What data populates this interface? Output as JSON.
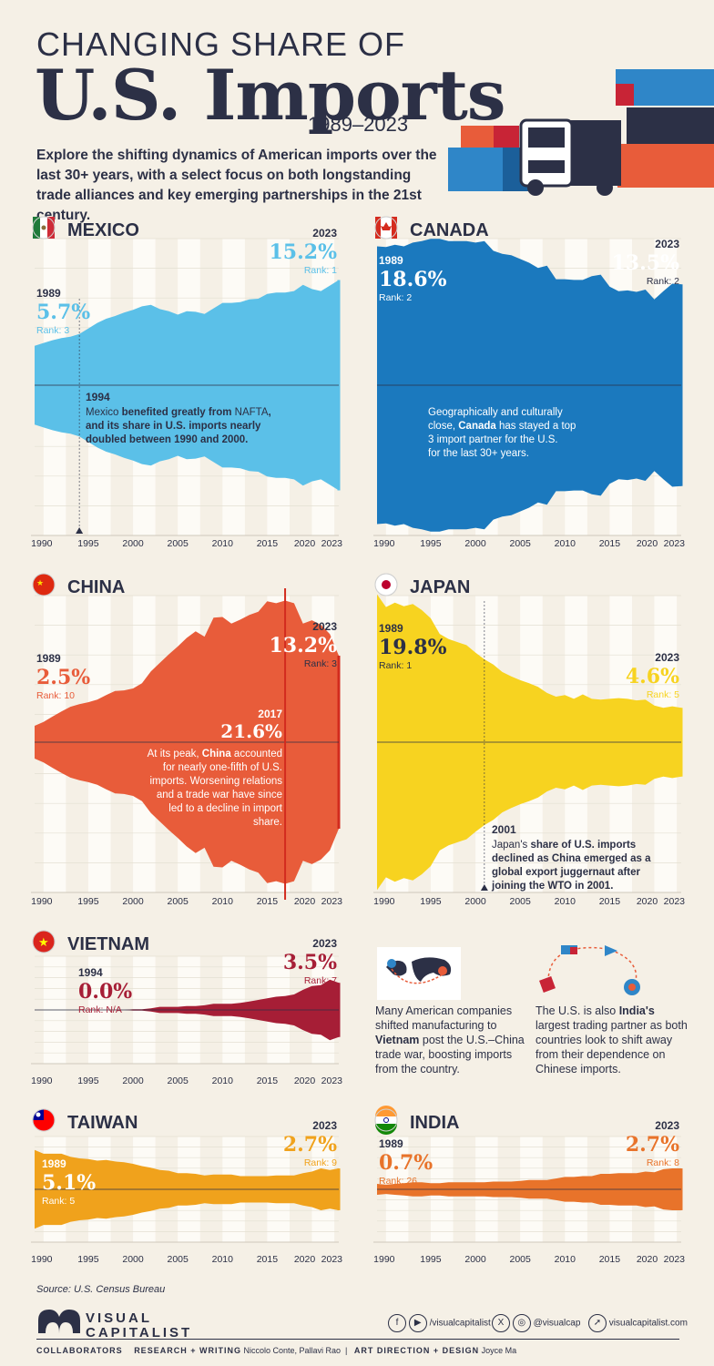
{
  "header": {
    "title_top": "CHANGING SHARE OF",
    "title_main": "U.S. Imports",
    "years": "1989–2023",
    "intro": "Explore the shifting dynamics of American imports over the last 30+ years, with a select focus on both longstanding trade alliances and key emerging partnerships in the 21st century."
  },
  "colors": {
    "background": "#f5f0e6",
    "text": "#2c3046",
    "mexico": "#5bc0e8",
    "canada": "#1b79be",
    "china": "#e85c3a",
    "china_line": "#d22b1e",
    "japan": "#f7d320",
    "vietnam": "#a61e36",
    "taiwan": "#f0a21c",
    "india": "#e8732a"
  },
  "axis": {
    "ticks": [
      "1990",
      "1995",
      "2000",
      "2005",
      "2010",
      "2015",
      "2020",
      "2023"
    ]
  },
  "chart_data": [
    {
      "type": "area",
      "country": "MEXICO",
      "x": [
        1989,
        1990,
        1991,
        1992,
        1993,
        1994,
        1995,
        1996,
        1997,
        1998,
        1999,
        2000,
        2001,
        2002,
        2003,
        2004,
        2005,
        2006,
        2007,
        2008,
        2009,
        2010,
        2011,
        2012,
        2013,
        2014,
        2015,
        2016,
        2017,
        2018,
        2019,
        2020,
        2021,
        2022,
        2023
      ],
      "values": [
        5.7,
        6.1,
        6.5,
        6.8,
        7.0,
        7.4,
        8.2,
        9.0,
        9.6,
        10.0,
        10.5,
        10.9,
        11.4,
        11.6,
        11.0,
        10.7,
        10.2,
        10.7,
        10.6,
        10.3,
        11.1,
        11.9,
        11.9,
        12.0,
        12.4,
        12.5,
        13.2,
        13.4,
        13.4,
        13.6,
        14.5,
        13.9,
        13.6,
        14.4,
        15.2
      ],
      "annotations": {
        "start": {
          "year_label": "1989",
          "value_label": "5.7%",
          "rank": "Rank: 3"
        },
        "end": {
          "year_label": "2023",
          "value_label": "15.2%",
          "rank": "Rank: 1"
        },
        "event": {
          "year_label": "1994",
          "text_parts": [
            "Mexico",
            " benefited greatly from ",
            "NAFTA",
            ", and its share in U.S. imports nearly doubled between 1990 and 2000."
          ]
        }
      }
    },
    {
      "type": "area",
      "country": "CANADA",
      "x": [
        1989,
        1990,
        1991,
        1992,
        1993,
        1994,
        1995,
        1996,
        1997,
        1998,
        1999,
        2000,
        2001,
        2002,
        2003,
        2004,
        2005,
        2006,
        2007,
        2008,
        2009,
        2010,
        2011,
        2012,
        2013,
        2014,
        2015,
        2016,
        2017,
        2018,
        2019,
        2020,
        2021,
        2022,
        2023
      ],
      "values": [
        18.6,
        18.5,
        18.8,
        18.6,
        19.1,
        19.3,
        19.6,
        19.6,
        19.3,
        19.3,
        19.3,
        19.1,
        19.3,
        18.0,
        17.6,
        17.4,
        16.9,
        16.4,
        15.7,
        16.0,
        14.2,
        14.2,
        14.1,
        14.1,
        14.6,
        14.8,
        13.2,
        12.6,
        12.7,
        12.5,
        12.8,
        11.5,
        12.6,
        13.6,
        13.5
      ],
      "annotations": {
        "start": {
          "year_label": "1989",
          "value_label": "18.6%",
          "rank": "Rank: 2"
        },
        "end": {
          "year_label": "2023",
          "value_label": "13.5%",
          "rank": "Rank: 2"
        },
        "event": {
          "year_label": "",
          "text_parts": [
            "Geographically and culturally close, ",
            "Canada",
            " has stayed a top 3 import partner for the U.S. for the last 30+ years."
          ]
        }
      }
    },
    {
      "type": "area",
      "country": "CHINA",
      "x": [
        1989,
        1990,
        1991,
        1992,
        1993,
        1994,
        1995,
        1996,
        1997,
        1998,
        1999,
        2000,
        2001,
        2002,
        2003,
        2004,
        2005,
        2006,
        2007,
        2008,
        2009,
        2010,
        2011,
        2012,
        2013,
        2014,
        2015,
        2016,
        2017,
        2018,
        2019,
        2020,
        2021,
        2022,
        2023
      ],
      "values": [
        2.5,
        3.1,
        3.9,
        4.7,
        5.4,
        5.8,
        6.1,
        6.5,
        7.2,
        7.8,
        7.9,
        8.2,
        9.0,
        10.8,
        12.1,
        13.4,
        14.6,
        15.9,
        16.9,
        16.1,
        19.0,
        19.1,
        18.1,
        18.7,
        19.4,
        19.9,
        21.5,
        21.2,
        21.6,
        21.2,
        18.1,
        18.6,
        17.9,
        16.5,
        13.2
      ],
      "annotations": {
        "start": {
          "year_label": "1989",
          "value_label": "2.5%",
          "rank": "Rank: 10"
        },
        "end": {
          "year_label": "2023",
          "value_label": "13.2%",
          "rank": "Rank: 3"
        },
        "peak": {
          "year_label": "2017",
          "value_label": "21.6%"
        },
        "event": {
          "year_label": "",
          "text_parts": [
            "At its peak, ",
            "China",
            " accounted for nearly one-fifth of U.S. imports. Worsening relations and a trade war have since led to a decline in import share."
          ]
        }
      }
    },
    {
      "type": "area",
      "country": "JAPAN",
      "x": [
        1989,
        1990,
        1991,
        1992,
        1993,
        1994,
        1995,
        1996,
        1997,
        1998,
        1999,
        2000,
        2001,
        2002,
        2003,
        2004,
        2005,
        2006,
        2007,
        2008,
        2009,
        2010,
        2011,
        2012,
        2013,
        2014,
        2015,
        2016,
        2017,
        2018,
        2019,
        2020,
        2021,
        2022,
        2023
      ],
      "values": [
        19.8,
        18.1,
        18.7,
        18.2,
        18.5,
        17.7,
        16.6,
        14.5,
        13.8,
        13.4,
        13.0,
        12.0,
        11.1,
        10.4,
        9.4,
        8.8,
        8.3,
        7.9,
        7.4,
        6.6,
        6.1,
        6.3,
        5.8,
        6.4,
        5.8,
        5.7,
        5.8,
        5.9,
        5.8,
        5.6,
        5.7,
        4.9,
        4.6,
        4.8,
        4.6
      ],
      "annotations": {
        "start": {
          "year_label": "1989",
          "value_label": "19.8%",
          "rank": "Rank: 1"
        },
        "end": {
          "year_label": "2023",
          "value_label": "4.6%",
          "rank": "Rank: 5"
        },
        "event": {
          "year_label": "2001",
          "text_parts": [
            "Japan's",
            " share of U.S. imports declined as China emerged as a global export juggernaut after joining the WTO in 2001."
          ]
        }
      }
    },
    {
      "type": "area",
      "country": "VIETNAM",
      "x": [
        1994,
        1995,
        1996,
        1997,
        1998,
        1999,
        2000,
        2001,
        2002,
        2003,
        2004,
        2005,
        2006,
        2007,
        2008,
        2009,
        2010,
        2011,
        2012,
        2013,
        2014,
        2015,
        2016,
        2017,
        2018,
        2019,
        2020,
        2021,
        2022,
        2023
      ],
      "values": [
        0.0,
        0.0,
        0.0,
        0.0,
        0.0,
        0.0,
        0.1,
        0.1,
        0.2,
        0.4,
        0.4,
        0.4,
        0.5,
        0.5,
        0.6,
        0.8,
        0.8,
        0.8,
        0.9,
        1.1,
        1.3,
        1.5,
        1.7,
        1.8,
        2.0,
        2.6,
        3.1,
        3.2,
        3.9,
        3.5
      ],
      "annotations": {
        "start": {
          "year_label": "1994",
          "value_label": "0.0%",
          "rank": "Rank: N/A"
        },
        "end": {
          "year_label": "2023",
          "value_label": "3.5%",
          "rank": "Rank: 7"
        }
      }
    },
    {
      "type": "area",
      "country": "TAIWAN",
      "x": [
        1989,
        1990,
        1991,
        1992,
        1993,
        1994,
        1995,
        1996,
        1997,
        1998,
        1999,
        2000,
        2001,
        2002,
        2003,
        2004,
        2005,
        2006,
        2007,
        2008,
        2009,
        2010,
        2011,
        2012,
        2013,
        2014,
        2015,
        2016,
        2017,
        2018,
        2019,
        2020,
        2021,
        2022,
        2023
      ],
      "values": [
        5.1,
        4.6,
        4.6,
        4.6,
        4.2,
        4.0,
        3.9,
        3.7,
        3.8,
        3.6,
        3.5,
        3.3,
        3.0,
        2.8,
        2.5,
        2.4,
        2.1,
        2.1,
        2.0,
        1.8,
        1.9,
        1.9,
        1.9,
        1.7,
        1.7,
        1.7,
        1.7,
        1.8,
        1.8,
        1.8,
        2.1,
        2.3,
        2.7,
        2.5,
        2.7
      ],
      "annotations": {
        "start": {
          "year_label": "1989",
          "value_label": "5.1%",
          "rank": "Rank: 5"
        },
        "end": {
          "year_label": "2023",
          "value_label": "2.7%",
          "rank": "Rank: 9"
        }
      }
    },
    {
      "type": "area",
      "country": "INDIA",
      "x": [
        1989,
        1990,
        1991,
        1992,
        1993,
        1994,
        1995,
        1996,
        1997,
        1998,
        1999,
        2000,
        2001,
        2002,
        2003,
        2004,
        2005,
        2006,
        2007,
        2008,
        2009,
        2010,
        2011,
        2012,
        2013,
        2014,
        2015,
        2016,
        2017,
        2018,
        2019,
        2020,
        2021,
        2022,
        2023
      ],
      "values": [
        0.7,
        0.6,
        0.7,
        0.8,
        0.9,
        0.9,
        0.8,
        0.8,
        0.9,
        0.9,
        0.9,
        0.9,
        0.9,
        1.0,
        1.0,
        1.0,
        1.1,
        1.2,
        1.2,
        1.2,
        1.4,
        1.6,
        1.6,
        1.7,
        1.7,
        2.0,
        2.0,
        2.1,
        2.1,
        2.1,
        2.3,
        2.2,
        2.6,
        2.7,
        2.7
      ],
      "annotations": {
        "start": {
          "year_label": "1989",
          "value_label": "0.7%",
          "rank": "Rank: 26"
        },
        "end": {
          "year_label": "2023",
          "value_label": "2.7%",
          "rank": "Rank: 8"
        }
      }
    }
  ],
  "notes": {
    "vietnam": [
      "Many American companies shifted manufacturing to ",
      "Vietnam",
      " post the U.S.–China trade war, boosting imports from the country."
    ],
    "india": [
      "The U.S. is also ",
      "India's",
      " largest trading partner as both countries look to shift away from their dependence on Chinese imports."
    ]
  },
  "footer": {
    "source": "Source: U.S. Census Bureau",
    "logo_line1": "VISUAL",
    "logo_line2": "CAPITALIST",
    "social_1": "/visualcapitalist",
    "social_2": "@visualcap",
    "social_3": "visualcapitalist.com",
    "collab_label": "COLLABORATORS",
    "research_label": "RESEARCH + WRITING",
    "research_names": "Niccolo Conte, Pallavi Rao",
    "art_label": "ART DIRECTION + DESIGN",
    "art_names": "Joyce Ma"
  }
}
